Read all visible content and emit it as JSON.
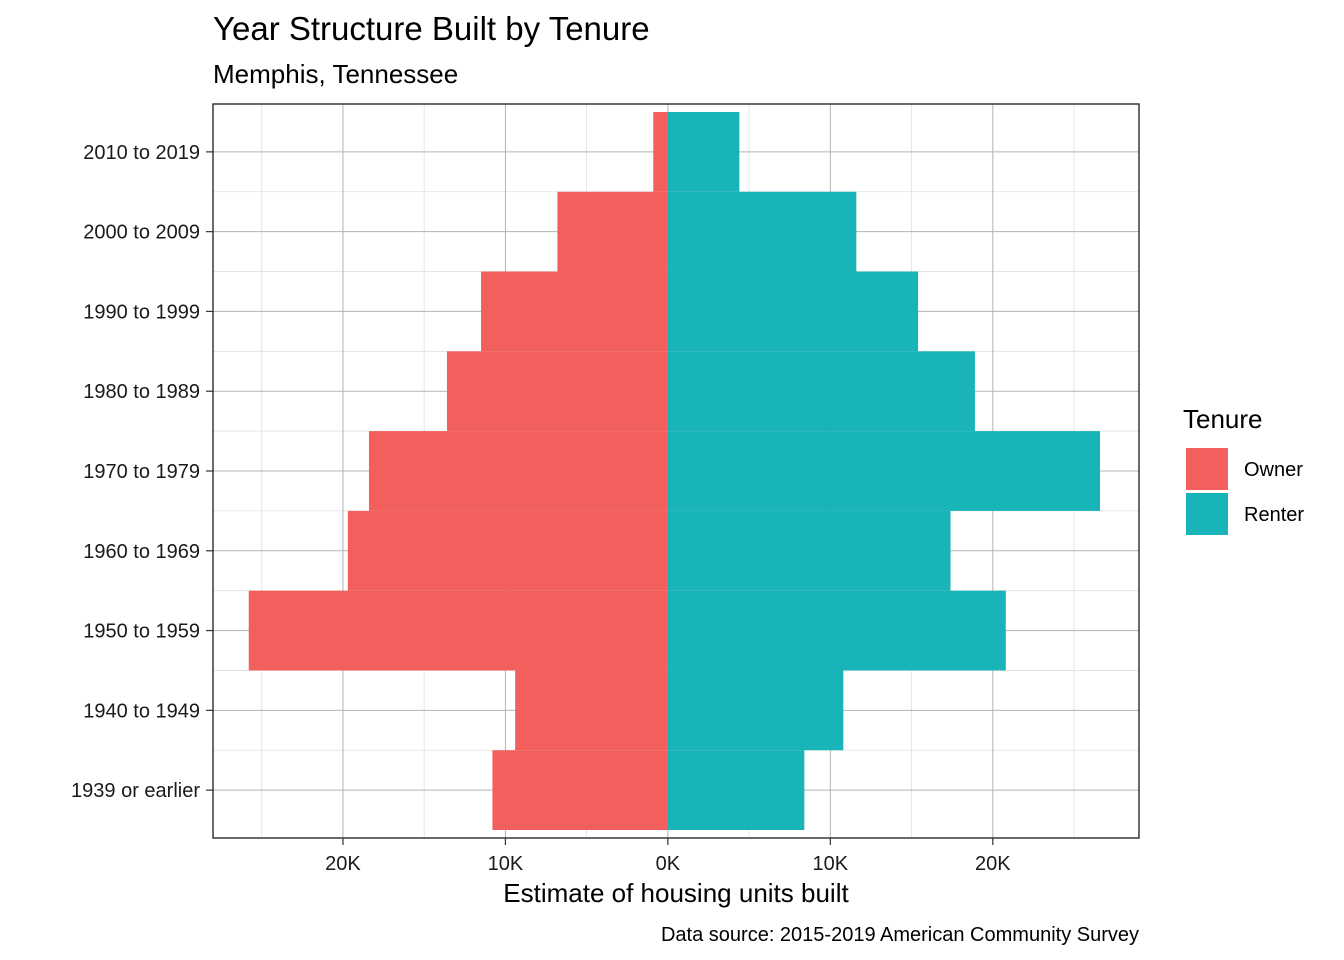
{
  "chart_data": {
    "type": "bar",
    "orientation": "horizontal-diverging",
    "title": "Year Structure Built by Tenure",
    "subtitle": "Memphis, Tennessee",
    "xlabel": "Estimate of housing units built",
    "ylabel": "",
    "caption": "Data source: 2015-2019 American Community Survey",
    "categories": [
      "1939 or earlier",
      "1940 to 1949",
      "1950 to 1959",
      "1960 to 1969",
      "1970 to 1979",
      "1980 to 1989",
      "1990 to 1999",
      "2000 to 2009",
      "2010 to 2019"
    ],
    "series": [
      {
        "name": "Owner",
        "color": "#f35f5c",
        "values": [
          -10800,
          -9400,
          -25800,
          -19700,
          -18400,
          -13600,
          -11500,
          -6800,
          -900
        ]
      },
      {
        "name": "Renter",
        "color": "#19b4b8",
        "values": [
          8400,
          10800,
          20800,
          17400,
          26600,
          18900,
          15400,
          11600,
          4400
        ]
      }
    ],
    "xlim": [
      -28000,
      29000
    ],
    "x_ticks": [
      {
        "value": -20000,
        "label": "20K"
      },
      {
        "value": -10000,
        "label": "10K"
      },
      {
        "value": 0,
        "label": "0K"
      },
      {
        "value": 10000,
        "label": "10K"
      },
      {
        "value": 20000,
        "label": "20K"
      }
    ],
    "x_minor_ticks": [
      -25000,
      -15000,
      -5000,
      5000,
      15000,
      25000
    ],
    "grid": true,
    "legend": {
      "title": "Tenure",
      "position": "right"
    }
  }
}
